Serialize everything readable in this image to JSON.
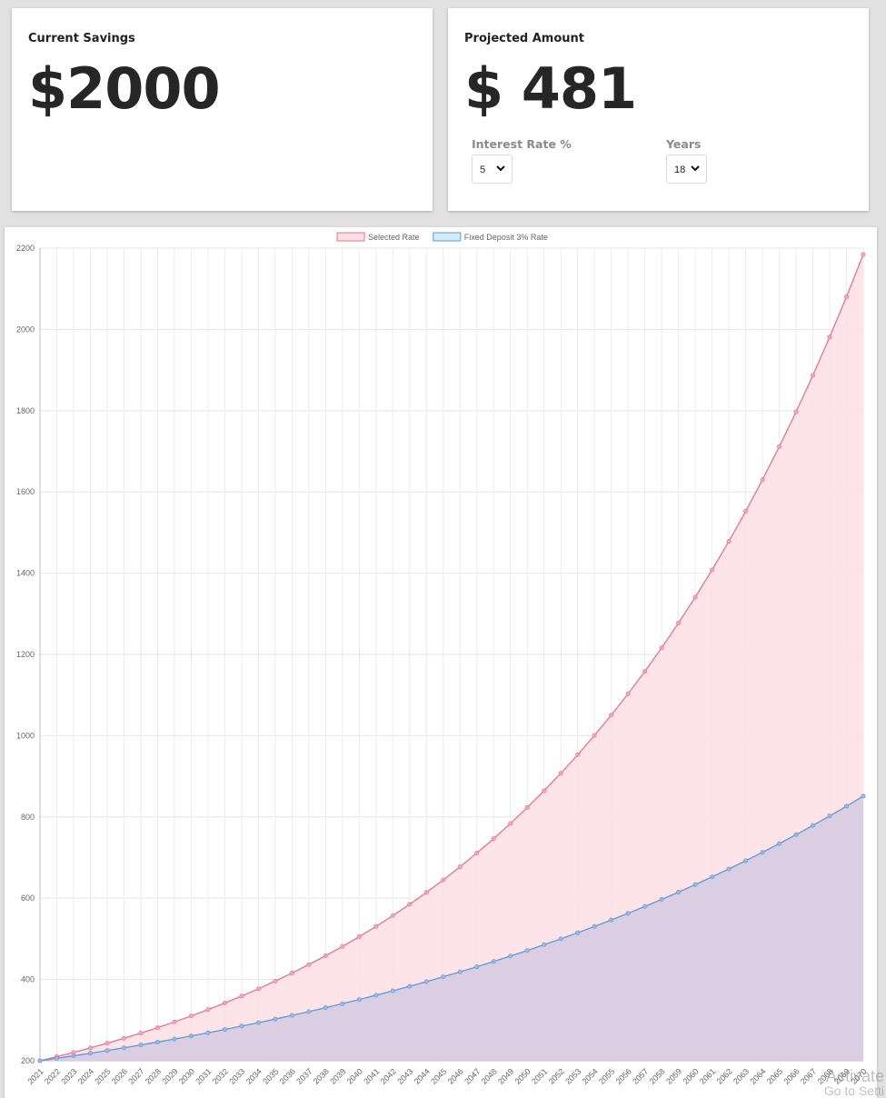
{
  "savings": {
    "title": "Current Savings",
    "amount": "$2000"
  },
  "projected": {
    "title": "Projected Amount",
    "amount": "$ 481",
    "rate_label": "Interest Rate %",
    "rate_value": "5",
    "years_label": "Years",
    "years_value": "18"
  },
  "chart_data": {
    "type": "area",
    "legend_position": "top",
    "grid": true,
    "ylim": [
      200,
      2200
    ],
    "yticks": [
      200,
      400,
      600,
      800,
      1000,
      1200,
      1400,
      1600,
      1800,
      2000,
      2200
    ],
    "x": [
      2021,
      2022,
      2023,
      2024,
      2025,
      2026,
      2027,
      2028,
      2029,
      2030,
      2031,
      2032,
      2033,
      2034,
      2035,
      2036,
      2037,
      2038,
      2039,
      2040,
      2041,
      2042,
      2043,
      2044,
      2045,
      2046,
      2047,
      2048,
      2049,
      2050,
      2051,
      2052,
      2053,
      2054,
      2055,
      2056,
      2057,
      2058,
      2059,
      2060,
      2061,
      2062,
      2063,
      2064,
      2065,
      2066,
      2067,
      2068,
      2069,
      2070
    ],
    "series": [
      {
        "name": "Selected Rate",
        "line_color": "#e8718f",
        "fill_color": "#fde1e6",
        "values": [
          200,
          210,
          220.5,
          231.5,
          243.1,
          255.3,
          268,
          281.4,
          295.5,
          310.3,
          325.8,
          342.1,
          359.2,
          377.1,
          396,
          415.8,
          436.6,
          458.4,
          481.3,
          505.4,
          530.7,
          557.2,
          585.1,
          614.3,
          645,
          677.3,
          711.2,
          746.7,
          784,
          823.2,
          864.4,
          907.6,
          953,
          1000.7,
          1050.7,
          1103.2,
          1158.4,
          1216.3,
          1277.1,
          1341,
          1408,
          1478.4,
          1552.3,
          1630,
          1711.4,
          1797,
          1886.9,
          1981.2,
          2080.3,
          2184.3
        ]
      },
      {
        "name": "Fixed Deposit 3% Rate",
        "line_color": "#5b9bd5",
        "fill_color": "#d4eaf8",
        "values": [
          200,
          206,
          212.2,
          218.5,
          225.1,
          231.9,
          238.8,
          246,
          253.4,
          261,
          268.8,
          276.8,
          285.2,
          293.7,
          302.5,
          311.6,
          320.9,
          330.6,
          340.5,
          350.7,
          361.2,
          372.1,
          383.2,
          394.7,
          406.6,
          418.8,
          431.3,
          444.3,
          457.6,
          471.3,
          485.5,
          500,
          515,
          530.5,
          546.4,
          562.8,
          579.7,
          597.1,
          615,
          633.4,
          652.5,
          672,
          692.2,
          713,
          734.4,
          756.4,
          779.1,
          802.4,
          826.5,
          851.3
        ]
      }
    ]
  },
  "watermark": {
    "line1": "Activate",
    "line2": "Go to Setti"
  }
}
